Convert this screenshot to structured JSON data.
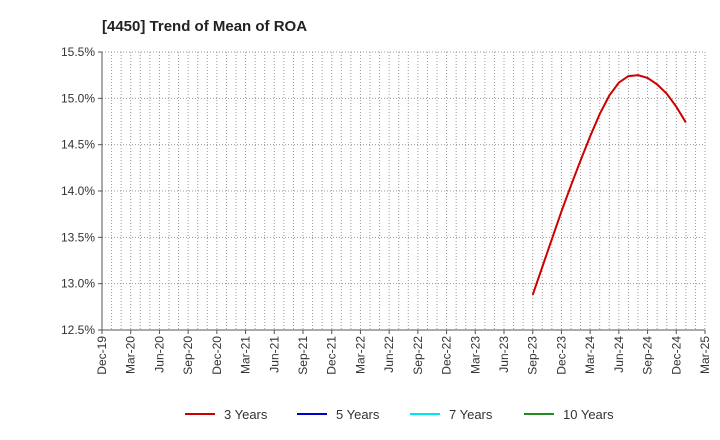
{
  "chart_data": {
    "type": "line",
    "title": "[4450]  Trend of Mean of ROA",
    "xlabel": "",
    "ylabel": "",
    "ylim": [
      12.5,
      15.5
    ],
    "y_ticks": [
      12.5,
      13.0,
      13.5,
      14.0,
      14.5,
      15.0,
      15.5
    ],
    "y_tick_labels": [
      "12.5%",
      "13.0%",
      "13.5%",
      "14.0%",
      "14.5%",
      "15.0%",
      "15.5%"
    ],
    "x_tick_labels": [
      "Dec-19",
      "Mar-20",
      "Jun-20",
      "Sep-20",
      "Dec-20",
      "Mar-21",
      "Jun-21",
      "Sep-21",
      "Dec-21",
      "Mar-22",
      "Jun-22",
      "Sep-22",
      "Dec-22",
      "Mar-23",
      "Jun-23",
      "Sep-23",
      "Dec-23",
      "Mar-24",
      "Jun-24",
      "Sep-24",
      "Dec-24",
      "Mar-25"
    ],
    "x_month_count": 63,
    "grid": true,
    "series": [
      {
        "name": "3 Years",
        "color": "#cc0000",
        "points": [
          {
            "m": 45,
            "v": 12.88
          },
          {
            "m": 46,
            "v": 13.18
          },
          {
            "m": 47,
            "v": 13.48
          },
          {
            "m": 48,
            "v": 13.78
          },
          {
            "m": 49,
            "v": 14.06
          },
          {
            "m": 50,
            "v": 14.33
          },
          {
            "m": 51,
            "v": 14.59
          },
          {
            "m": 52,
            "v": 14.83
          },
          {
            "m": 53,
            "v": 15.03
          },
          {
            "m": 54,
            "v": 15.17
          },
          {
            "m": 55,
            "v": 15.24
          },
          {
            "m": 56,
            "v": 15.25
          },
          {
            "m": 57,
            "v": 15.22
          },
          {
            "m": 58,
            "v": 15.15
          },
          {
            "m": 59,
            "v": 15.05
          },
          {
            "m": 60,
            "v": 14.91
          },
          {
            "m": 61,
            "v": 14.74
          }
        ]
      },
      {
        "name": "5 Years",
        "color": "#0000cc",
        "points": []
      },
      {
        "name": "7 Years",
        "color": "#00e5ee",
        "points": []
      },
      {
        "name": "10 Years",
        "color": "#228b22",
        "points": []
      }
    ],
    "legend_position": "bottom"
  }
}
